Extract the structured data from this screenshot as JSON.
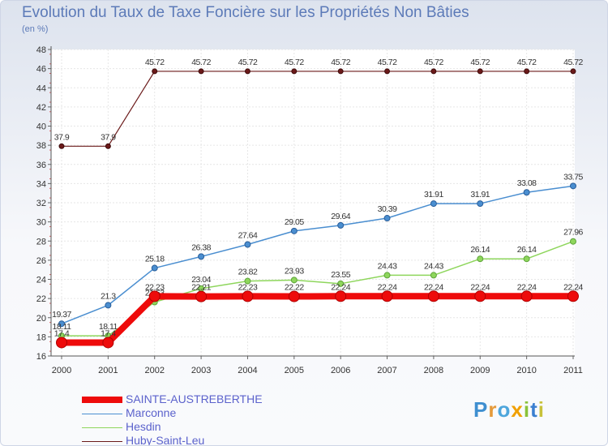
{
  "chart_data": {
    "type": "line",
    "title": "Evolution du Taux de Taxe Foncière sur les Propriétés Non Bâties",
    "subtitle": "(en %)",
    "categories": [
      "2000",
      "2001",
      "2002",
      "2003",
      "2004",
      "2005",
      "2006",
      "2007",
      "2008",
      "2009",
      "2010",
      "2011"
    ],
    "ylim": [
      16,
      48
    ],
    "yticks": [
      16,
      18,
      20,
      22,
      24,
      26,
      28,
      30,
      32,
      34,
      36,
      38,
      40,
      42,
      44,
      46,
      48
    ],
    "grid": true,
    "series": [
      {
        "name": "Huby-Saint-Leu",
        "color": "#6b1a1a",
        "values": [
          37.9,
          37.9,
          45.72,
          45.72,
          45.72,
          45.72,
          45.72,
          45.72,
          45.72,
          45.72,
          45.72,
          45.72
        ],
        "labels": [
          "37.9",
          "37.9",
          "45.72",
          "45.72",
          "45.72",
          "45.72",
          "45.72",
          "45.72",
          "45.72",
          "45.72",
          "45.72",
          "45.72"
        ]
      },
      {
        "name": "Marconne",
        "color": "#4a8ed0",
        "values": [
          19.37,
          21.3,
          25.18,
          26.38,
          27.64,
          29.05,
          29.64,
          30.39,
          31.91,
          31.91,
          33.08,
          33.75
        ],
        "labels": [
          "19.37",
          "21.3",
          "25.18",
          "26.38",
          "27.64",
          "29.05",
          "29.64",
          "30.39",
          "31.91",
          "31.91",
          "33.08",
          "33.75"
        ]
      },
      {
        "name": "Hesdin",
        "color": "#8ed65c",
        "values": [
          18.11,
          18.11,
          21.63,
          23.04,
          23.82,
          23.93,
          23.55,
          24.43,
          24.43,
          26.14,
          26.14,
          27.96
        ],
        "labels": [
          "18.11",
          "18.11",
          "21.63",
          "23.04",
          "23.82",
          "23.93",
          "23.55",
          "24.43",
          "24.43",
          "26.14",
          "26.14",
          "27.96"
        ]
      },
      {
        "name": "SAINTE-AUSTREBERTHE",
        "color": "#ee0b0b",
        "values": [
          17.4,
          17.4,
          22.23,
          22.21,
          22.23,
          22.22,
          22.24,
          22.24,
          22.24,
          22.24,
          22.24,
          22.24
        ],
        "labels": [
          "17.4",
          "17.4",
          "22.23",
          "22.21",
          "22.23",
          "22.22",
          "22.24",
          "22.24",
          "22.24",
          "22.24",
          "22.24",
          "22.24"
        ]
      }
    ],
    "legend_order": [
      "SAINTE-AUSTREBERTHE",
      "Marconne",
      "Hesdin",
      "Huby-Saint-Leu"
    ],
    "legend_placement": "bottom-left"
  },
  "brand": {
    "letters": [
      "P",
      "r",
      "o",
      "x",
      "i",
      "t",
      "i"
    ],
    "colors": [
      "#3f8fd0",
      "#e59a3a",
      "#4ea6dc",
      "#f0a000",
      "#8ac23a",
      "#3b7fd0",
      "#c8c23a"
    ]
  }
}
